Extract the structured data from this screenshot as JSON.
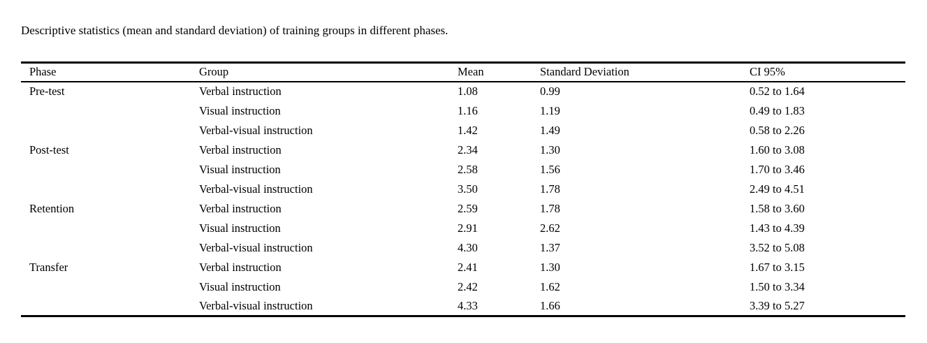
{
  "title": "Descriptive statistics (mean and standard deviation) of training groups in different phases.",
  "table": {
    "columns": [
      "Phase",
      "Group",
      "Mean",
      "Standard Deviation",
      "CI 95%"
    ],
    "rows": [
      {
        "phase": "Pre-test",
        "group": "Verbal instruction",
        "mean": "1.08",
        "sd": "0.99",
        "ci": "0.52 to 1.64"
      },
      {
        "phase": "",
        "group": "Visual instruction",
        "mean": "1.16",
        "sd": "1.19",
        "ci": "0.49 to 1.83"
      },
      {
        "phase": "",
        "group": "Verbal-visual instruction",
        "mean": "1.42",
        "sd": "1.49",
        "ci": "0.58 to 2.26"
      },
      {
        "phase": "Post-test",
        "group": "Verbal instruction",
        "mean": "2.34",
        "sd": "1.30",
        "ci": "1.60 to 3.08"
      },
      {
        "phase": "",
        "group": "Visual instruction",
        "mean": "2.58",
        "sd": "1.56",
        "ci": "1.70 to 3.46"
      },
      {
        "phase": "",
        "group": "Verbal-visual instruction",
        "mean": "3.50",
        "sd": "1.78",
        "ci": "2.49 to 4.51"
      },
      {
        "phase": "Retention",
        "group": "Verbal instruction",
        "mean": "2.59",
        "sd": "1.78",
        "ci": "1.58 to 3.60"
      },
      {
        "phase": "",
        "group": "Visual instruction",
        "mean": "2.91",
        "sd": "2.62",
        "ci": "1.43 to 4.39"
      },
      {
        "phase": "",
        "group": "Verbal-visual instruction",
        "mean": "4.30",
        "sd": "1.37",
        "ci": "3.52 to 5.08"
      },
      {
        "phase": "Transfer",
        "group": "Verbal instruction",
        "mean": "2.41",
        "sd": "1.30",
        "ci": "1.67 to 3.15"
      },
      {
        "phase": "",
        "group": "Visual instruction",
        "mean": "2.42",
        "sd": "1.62",
        "ci": "1.50 to 3.34"
      },
      {
        "phase": "",
        "group": "Verbal-visual instruction",
        "mean": "4.33",
        "sd": "1.66",
        "ci": "3.39 to 5.27"
      }
    ]
  }
}
